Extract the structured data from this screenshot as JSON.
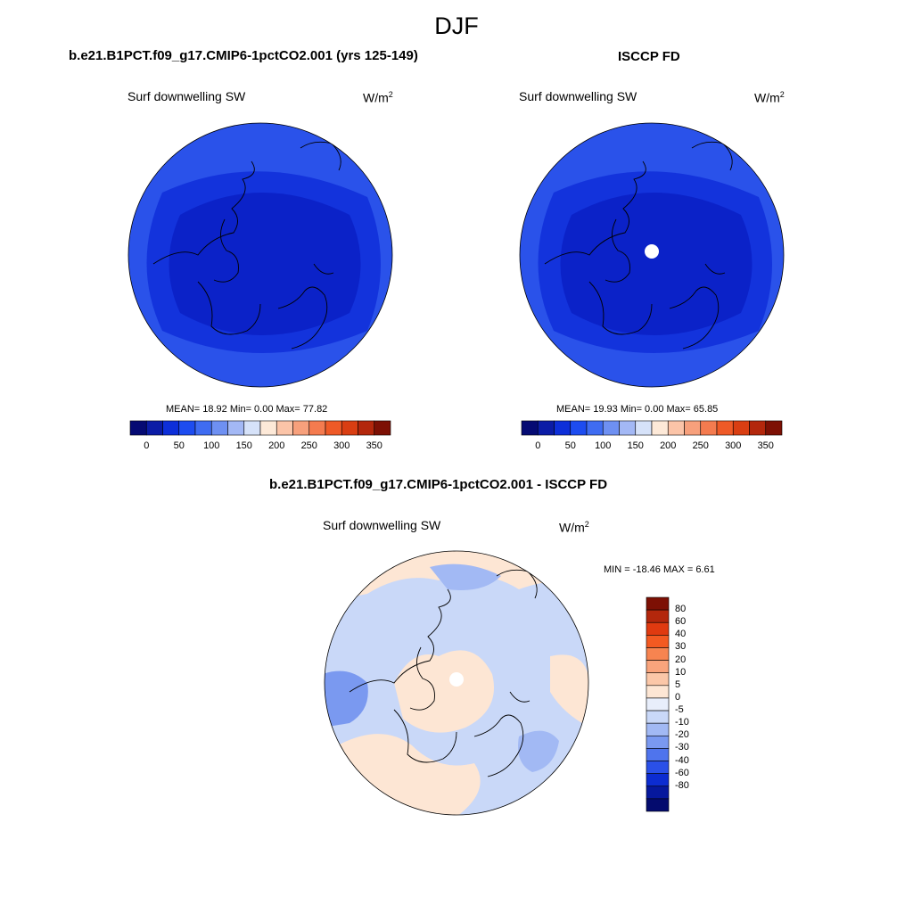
{
  "page_title": "DJF",
  "panels": [
    {
      "title": "b.e21.B1PCT.f09_g17.CMIP6-1pctCO2.001 (yrs 125-149)",
      "variable": "Surf downwelling SW",
      "units_base": "W/m",
      "units_exp": "2",
      "stats": "MEAN=  18.92  Min=   0.00  Max=  77.82"
    },
    {
      "title": "ISCCP FD",
      "variable": "Surf downwelling SW",
      "units_base": "W/m",
      "units_exp": "2",
      "stats": "MEAN=  19.93  Min=   0.00  Max=  65.85"
    },
    {
      "title": "b.e21.B1PCT.f09_g17.CMIP6-1pctCO2.001 - ISCCP FD",
      "variable": "Surf downwelling SW",
      "units_base": "W/m",
      "units_exp": "2",
      "stats": "MIN = -18.46 MAX =   6.61"
    }
  ],
  "colorbar_top": {
    "colors": [
      "#050a73",
      "#0b1ca6",
      "#0d2fd9",
      "#1d4cf0",
      "#3f6cf2",
      "#6e90f2",
      "#a3b8f5",
      "#d6e2f9",
      "#fde9d8",
      "#fbc4a8",
      "#f7a07c",
      "#f47b4f",
      "#ef5a27",
      "#d93e12",
      "#b3270c",
      "#7d1004"
    ],
    "labels": [
      "0",
      "50",
      "100",
      "150",
      "200",
      "250",
      "300",
      "350"
    ]
  },
  "colorbar_diff": {
    "colors_top_to_bottom": [
      "#7d1004",
      "#b3270c",
      "#e03a10",
      "#f35a22",
      "#f78450",
      "#f9a47c",
      "#fbc7a8",
      "#fde6d4",
      "#e8eefb",
      "#c9d8f8",
      "#a2b9f4",
      "#7a99f0",
      "#4f74ed",
      "#2a50e8",
      "#0c2cd1",
      "#06189d",
      "#040b6e"
    ],
    "labels_top_to_bottom": [
      "80",
      "60",
      "40",
      "30",
      "20",
      "10",
      "5",
      "0",
      "-5",
      "-10",
      "-20",
      "-30",
      "-40",
      "-60",
      "-80"
    ]
  },
  "colors": {
    "map_dark_blue": "#0b22c8",
    "map_mid_blue": "#1333dc",
    "map_light_blue": "#2a52ea",
    "diff_light_blue": "#c9d8f8",
    "diff_peach": "#fde6d4",
    "diff_blue": "#7a99f0"
  }
}
